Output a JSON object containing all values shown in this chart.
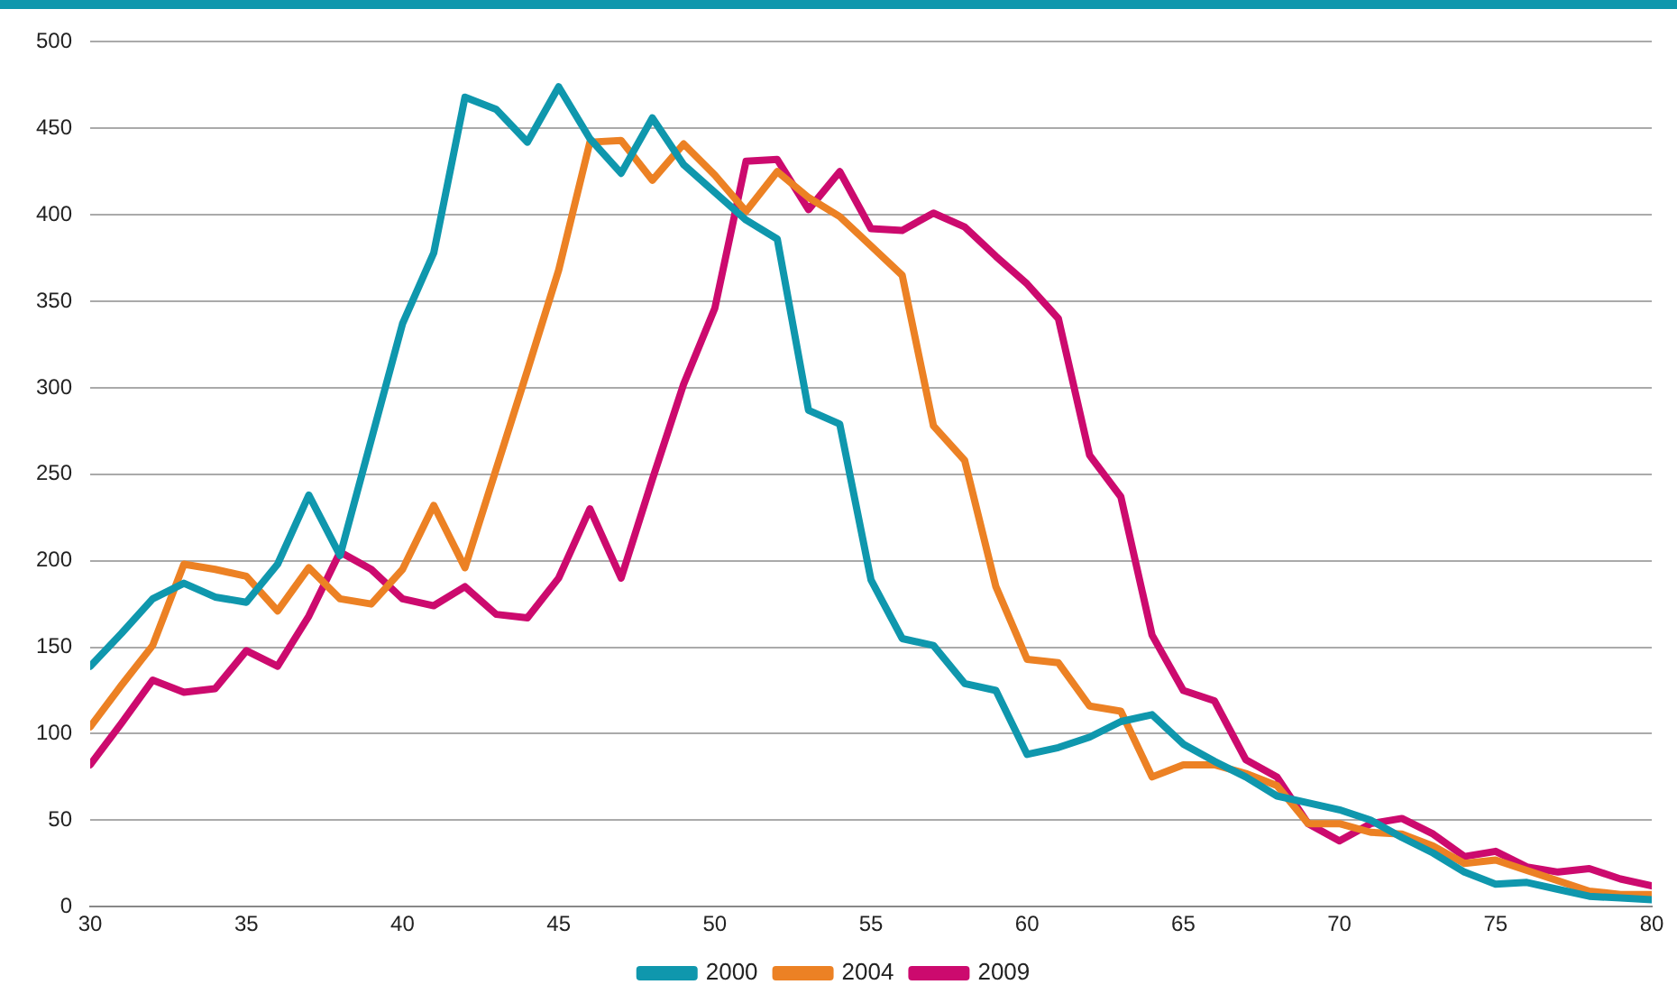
{
  "chart_data": {
    "type": "line",
    "x": [
      30,
      31,
      32,
      33,
      34,
      35,
      36,
      37,
      38,
      39,
      40,
      41,
      42,
      43,
      44,
      45,
      46,
      47,
      48,
      49,
      50,
      51,
      52,
      53,
      54,
      55,
      56,
      57,
      58,
      59,
      60,
      61,
      62,
      63,
      64,
      65,
      66,
      67,
      68,
      69,
      70,
      71,
      72,
      73,
      74,
      75,
      76,
      77,
      78,
      79,
      80
    ],
    "series": [
      {
        "name": "2000",
        "color": "#0f97ad",
        "values": [
          139,
          158,
          178,
          187,
          179,
          176,
          198,
          238,
          203,
          270,
          337,
          378,
          468,
          461,
          442,
          474,
          444,
          424,
          456,
          429,
          413,
          397,
          386,
          287,
          279,
          189,
          155,
          151,
          129,
          125,
          88,
          92,
          98,
          107,
          111,
          94,
          84,
          75,
          64,
          60,
          56,
          50,
          40,
          31,
          20,
          13,
          14,
          10,
          6,
          5,
          4
        ]
      },
      {
        "name": "2004",
        "color": "#ec8124",
        "values": [
          104,
          128,
          151,
          198,
          195,
          191,
          171,
          196,
          178,
          175,
          195,
          232,
          196,
          253,
          310,
          368,
          442,
          443,
          420,
          441,
          423,
          402,
          425,
          410,
          399,
          382,
          365,
          278,
          258,
          185,
          143,
          141,
          116,
          113,
          75,
          82,
          82,
          77,
          70,
          48,
          48,
          43,
          42,
          35,
          25,
          27,
          21,
          15,
          9,
          7,
          7
        ]
      },
      {
        "name": "2009",
        "color": "#cc0a6e",
        "values": [
          82,
          106,
          131,
          124,
          126,
          148,
          139,
          168,
          205,
          195,
          178,
          174,
          185,
          169,
          167,
          190,
          230,
          190,
          247,
          302,
          346,
          431,
          432,
          403,
          425,
          392,
          391,
          401,
          393,
          376,
          360,
          340,
          261,
          237,
          157,
          125,
          119,
          85,
          75,
          48,
          38,
          48,
          51,
          42,
          29,
          32,
          23,
          20,
          22,
          16,
          12
        ]
      }
    ],
    "xlim": [
      30,
      80
    ],
    "xticks": [
      30,
      35,
      40,
      45,
      50,
      55,
      60,
      65,
      70,
      75,
      80
    ],
    "ylim": [
      0,
      500
    ],
    "yticks": [
      0,
      50,
      100,
      150,
      200,
      250,
      300,
      350,
      400,
      450,
      500
    ],
    "grid": "y",
    "legend": "bottom",
    "marker": "none",
    "line_style": "solid"
  }
}
